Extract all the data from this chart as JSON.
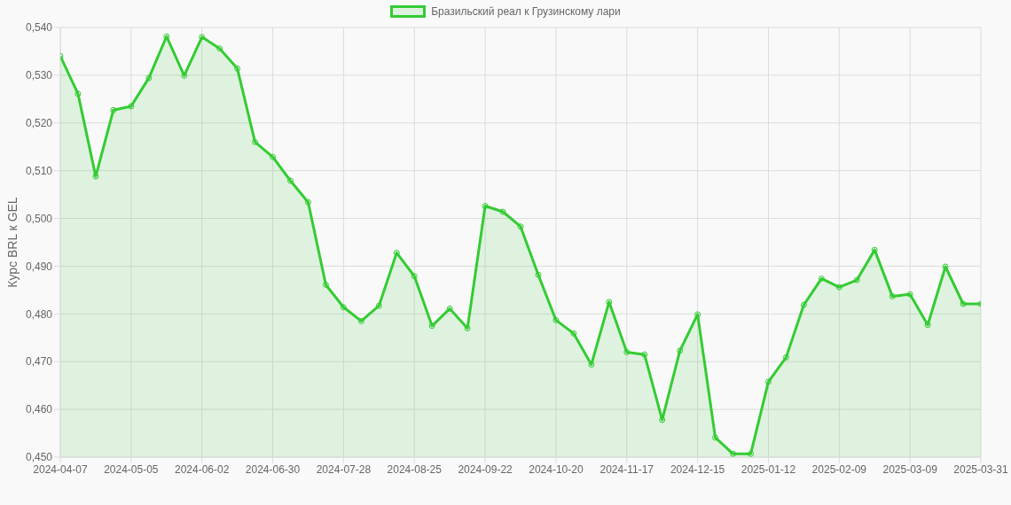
{
  "chart_data": {
    "type": "area",
    "ylabel": "Курс BRL к GEL",
    "categories": [
      "2024-04-07",
      null,
      null,
      null,
      "2024-05-05",
      null,
      null,
      null,
      "2024-06-02",
      null,
      null,
      null,
      "2024-06-30",
      null,
      null,
      null,
      "2024-07-28",
      null,
      null,
      null,
      "2024-08-25",
      null,
      null,
      null,
      "2024-09-22",
      null,
      null,
      null,
      "2024-10-20",
      null,
      null,
      null,
      "2024-11-17",
      null,
      null,
      null,
      "2024-12-15",
      null,
      null,
      null,
      "2025-01-12",
      null,
      null,
      null,
      "2025-02-09",
      null,
      null,
      null,
      "2025-03-09",
      null,
      null,
      null,
      "2025-03-31"
    ],
    "series": [
      {
        "name": "Бразильский реал к Грузинскому лари",
        "color": "#33cc33",
        "values": [
          0.534,
          0.5261,
          0.5088,
          0.5227,
          0.5235,
          0.5294,
          0.5381,
          0.5299,
          0.538,
          0.5356,
          0.5314,
          0.516,
          0.5129,
          0.5079,
          0.5034,
          0.4861,
          0.4814,
          0.4785,
          0.4817,
          0.4928,
          0.4879,
          0.4775,
          0.4811,
          0.477,
          0.5026,
          0.5014,
          0.4983,
          0.4882,
          0.4787,
          0.4759,
          0.4694,
          0.4825,
          0.472,
          0.4715,
          0.4578,
          0.4723,
          0.4799,
          0.4541,
          0.4507,
          0.4507,
          0.4658,
          0.4709,
          0.4819,
          0.4874,
          0.4856,
          0.4871,
          0.4934,
          0.4837,
          0.4841,
          0.4777,
          0.4899,
          0.4821,
          0.4821
        ]
      }
    ],
    "ylim": [
      0.45,
      0.54
    ],
    "yticks": [
      {
        "value": 0.45,
        "label": "0,450"
      },
      {
        "value": 0.46,
        "label": "0,460"
      },
      {
        "value": 0.47,
        "label": "0,470"
      },
      {
        "value": 0.48,
        "label": "0,480"
      },
      {
        "value": 0.49,
        "label": "0,490"
      },
      {
        "value": 0.5,
        "label": "0,500"
      },
      {
        "value": 0.51,
        "label": "0,510"
      },
      {
        "value": 0.52,
        "label": "0,520"
      },
      {
        "value": 0.53,
        "label": "0,530"
      },
      {
        "value": 0.54,
        "label": "0,540"
      }
    ],
    "grid": true,
    "legend": "top",
    "marker": "circle"
  }
}
